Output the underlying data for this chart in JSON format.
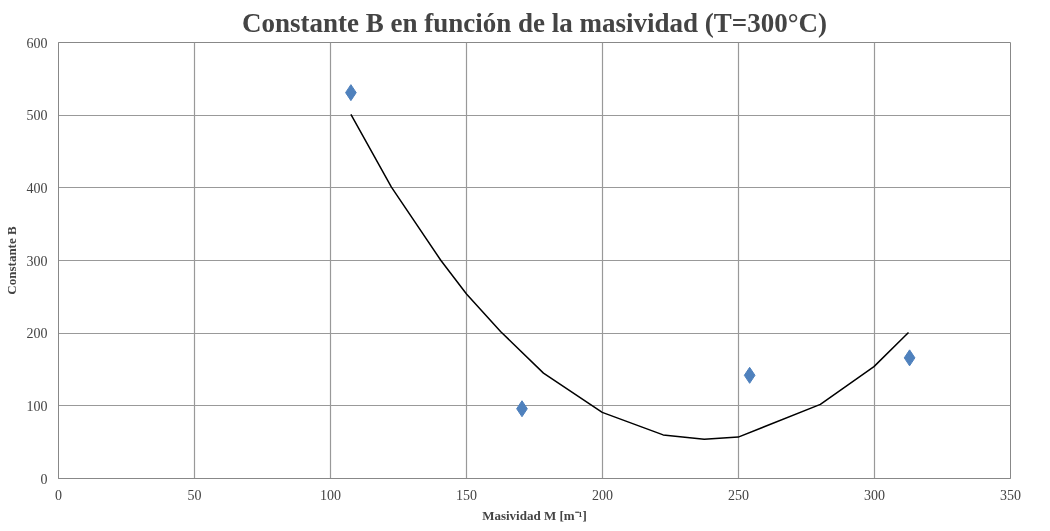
{
  "chart_data": {
    "type": "scatter",
    "title": "Constante B en función de la masividad (T=300°C)",
    "xlabel": "Masividad M [m⁻¹]",
    "ylabel": "Constante B",
    "xlim": [
      0,
      350
    ],
    "xticks": [
      0,
      50,
      100,
      150,
      200,
      250,
      300,
      350
    ],
    "ylim": [
      0,
      600
    ],
    "yticks": [
      0,
      100,
      200,
      300,
      400,
      500,
      600
    ],
    "grid": true,
    "series": [
      {
        "marker": "diamond",
        "color": "#4f81bd",
        "x": [
          107.5,
          170.4,
          254.1,
          312.9
        ],
        "values": [
          531,
          96,
          142,
          166
        ]
      },
      {
        "type": "line",
        "color": "#000000",
        "line_style": "solid",
        "x": [
          107.5,
          122.4,
          140.6,
          150,
          162.6,
          178.3,
          199.9,
          222.3,
          237.4,
          249.9,
          280.1,
          299.8,
          312.5
        ],
        "values": [
          501,
          401,
          300,
          254,
          202,
          145,
          91,
          60,
          54,
          57,
          102,
          154,
          201
        ]
      }
    ]
  }
}
